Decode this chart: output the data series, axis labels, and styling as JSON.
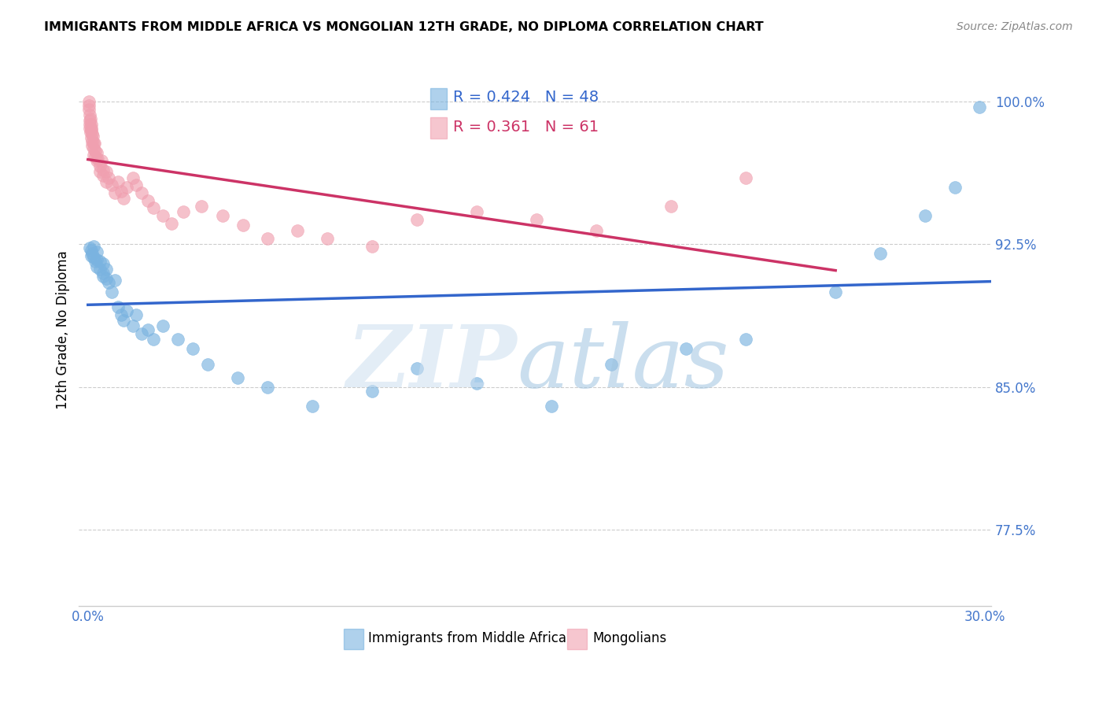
{
  "title": "IMMIGRANTS FROM MIDDLE AFRICA VS MONGOLIAN 12TH GRADE, NO DIPLOMA CORRELATION CHART",
  "source": "Source: ZipAtlas.com",
  "ylabel": "12th Grade, No Diploma",
  "xlim": [
    -0.003,
    0.302
  ],
  "ylim": [
    0.735,
    1.025
  ],
  "xtick_positions": [
    0.0,
    0.05,
    0.1,
    0.15,
    0.2,
    0.25,
    0.3
  ],
  "xticklabels": [
    "0.0%",
    "",
    "",
    "",
    "",
    "",
    "30.0%"
  ],
  "yticks_right": [
    1.0,
    0.925,
    0.85,
    0.775
  ],
  "ytick_right_labels": [
    "100.0%",
    "92.5%",
    "85.0%",
    "77.5%"
  ],
  "grid_color": "#cccccc",
  "blue_color": "#7ab3e0",
  "pink_color": "#f0a0b0",
  "blue_line_color": "#3366cc",
  "pink_line_color": "#cc3366",
  "legend_blue_r": "R = 0.424",
  "legend_blue_n": "N = 48",
  "legend_pink_r": "R = 0.361",
  "legend_pink_n": "N = 61",
  "blue_scatter_x": [
    0.0005,
    0.001,
    0.001,
    0.0015,
    0.002,
    0.002,
    0.0025,
    0.003,
    0.003,
    0.003,
    0.004,
    0.004,
    0.005,
    0.005,
    0.005,
    0.006,
    0.006,
    0.007,
    0.008,
    0.009,
    0.01,
    0.011,
    0.012,
    0.013,
    0.015,
    0.016,
    0.018,
    0.02,
    0.022,
    0.025,
    0.03,
    0.035,
    0.04,
    0.05,
    0.06,
    0.075,
    0.095,
    0.11,
    0.13,
    0.155,
    0.175,
    0.2,
    0.22,
    0.25,
    0.265,
    0.28,
    0.29,
    0.298
  ],
  "blue_scatter_y": [
    0.923,
    0.919,
    0.922,
    0.92,
    0.918,
    0.924,
    0.916,
    0.921,
    0.917,
    0.913,
    0.916,
    0.912,
    0.91,
    0.908,
    0.915,
    0.912,
    0.907,
    0.905,
    0.9,
    0.906,
    0.892,
    0.888,
    0.885,
    0.89,
    0.882,
    0.888,
    0.878,
    0.88,
    0.875,
    0.882,
    0.875,
    0.87,
    0.862,
    0.855,
    0.85,
    0.84,
    0.848,
    0.86,
    0.852,
    0.84,
    0.862,
    0.87,
    0.875,
    0.9,
    0.92,
    0.94,
    0.955,
    0.997
  ],
  "pink_scatter_x": [
    0.0002,
    0.0003,
    0.0004,
    0.0005,
    0.0005,
    0.0006,
    0.0007,
    0.0008,
    0.0009,
    0.001,
    0.001,
    0.001,
    0.0012,
    0.0013,
    0.0014,
    0.0015,
    0.0016,
    0.0018,
    0.002,
    0.002,
    0.0022,
    0.0024,
    0.0025,
    0.003,
    0.003,
    0.0032,
    0.004,
    0.004,
    0.0045,
    0.005,
    0.005,
    0.006,
    0.006,
    0.007,
    0.008,
    0.009,
    0.01,
    0.011,
    0.012,
    0.013,
    0.015,
    0.016,
    0.018,
    0.02,
    0.022,
    0.025,
    0.028,
    0.032,
    0.038,
    0.045,
    0.052,
    0.06,
    0.07,
    0.08,
    0.095,
    0.11,
    0.13,
    0.15,
    0.17,
    0.195,
    0.22
  ],
  "pink_scatter_y": [
    0.998,
    1.0,
    0.996,
    0.993,
    0.99,
    0.988,
    0.986,
    0.984,
    0.991,
    0.988,
    0.985,
    0.981,
    0.986,
    0.983,
    0.979,
    0.977,
    0.982,
    0.978,
    0.975,
    0.972,
    0.978,
    0.974,
    0.971,
    0.969,
    0.973,
    0.97,
    0.966,
    0.963,
    0.969,
    0.964,
    0.961,
    0.958,
    0.963,
    0.96,
    0.956,
    0.952,
    0.958,
    0.953,
    0.949,
    0.955,
    0.96,
    0.956,
    0.952,
    0.948,
    0.944,
    0.94,
    0.936,
    0.942,
    0.945,
    0.94,
    0.935,
    0.928,
    0.932,
    0.928,
    0.924,
    0.938,
    0.942,
    0.938,
    0.932,
    0.945,
    0.96
  ]
}
